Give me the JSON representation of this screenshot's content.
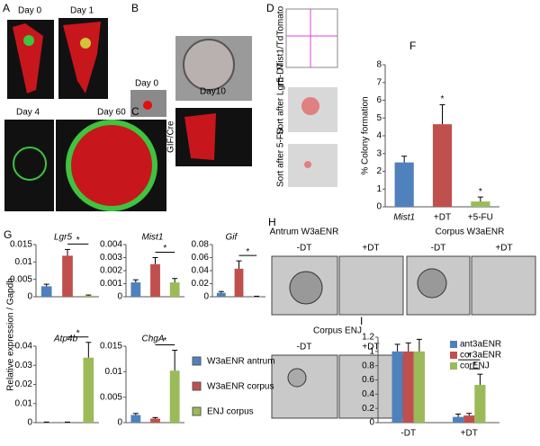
{
  "figure": {
    "panel_letters": [
      "A",
      "B",
      "C",
      "D",
      "E",
      "F",
      "G",
      "H",
      "I"
    ],
    "image_labels": [
      "Day 0",
      "Day 1",
      "Day 4",
      "Day 60",
      "Day 0",
      "Day10",
      "GIF/Cre",
      "Mist1/TdTomato",
      "Sort after Lgr5-DT",
      "Sort after 5-FU",
      "Antrum W3aENR",
      "Corpus W3aENR",
      "-DT",
      "+DT",
      "-DT",
      "+DT",
      "Corpus ENJ",
      "-DT",
      "+DT"
    ],
    "g_ylabel": "Relative expression / Gapdh",
    "g_legend": [
      {
        "name": "W3aENR antrum",
        "color": "#4f81bd"
      },
      {
        "name": "W3aENR corpus",
        "color": "#c0504d"
      },
      {
        "name": "ENJ corpus",
        "color": "#9bbb59"
      }
    ]
  },
  "chart_data": [
    {
      "type": "bar",
      "ylabel": "% Colony formation",
      "categories": [
        "Mist1",
        "+DT",
        "+5-FU"
      ],
      "values": [
        2.5,
        4.65,
        0.3
      ],
      "errors": [
        0.35,
        1.1,
        0.25
      ],
      "colors": [
        "#4f81bd",
        "#c0504d",
        "#9bbb59"
      ],
      "ylim": [
        0,
        8
      ],
      "yticks": [
        0,
        1,
        2,
        3,
        4,
        5,
        6,
        7,
        8
      ],
      "stars": [
        {
          "index": 1,
          "label": "*"
        },
        {
          "index": 2,
          "label": "*"
        }
      ]
    },
    {
      "type": "bar",
      "title": "Lgr5",
      "values": [
        0.003,
        0.0118,
        0.0003
      ],
      "errors": [
        0.0006,
        0.0018,
        0.0002
      ],
      "colors": [
        "#4f81bd",
        "#c0504d",
        "#9bbb59"
      ],
      "ylim": [
        0,
        0.015
      ],
      "yticks": [
        0,
        0.005,
        0.01,
        0.015
      ],
      "brackets": [
        {
          "from": 1,
          "to": 2,
          "label": "*"
        }
      ]
    },
    {
      "type": "bar",
      "title": "Mist1",
      "values": [
        0.0011,
        0.0025,
        0.0011
      ],
      "errors": [
        0.0002,
        0.0005,
        0.0003
      ],
      "colors": [
        "#4f81bd",
        "#c0504d",
        "#9bbb59"
      ],
      "ylim": [
        0,
        0.004
      ],
      "yticks": [
        0,
        0.001,
        0.002,
        0.003,
        0.004
      ],
      "brackets": [
        {
          "from": 1,
          "to": 2,
          "label": "*"
        }
      ]
    },
    {
      "type": "bar",
      "title": "Gif",
      "values": [
        0.006,
        0.043,
        0.0005
      ],
      "errors": [
        0.002,
        0.012,
        0.0003
      ],
      "colors": [
        "#4f81bd",
        "#c0504d",
        "#9bbb59"
      ],
      "ylim": [
        0,
        0.08
      ],
      "yticks": [
        0,
        0.02,
        0.04,
        0.06,
        0.08
      ],
      "brackets": [
        {
          "from": 1,
          "to": 2,
          "label": "*"
        }
      ]
    },
    {
      "type": "bar",
      "title": "Atp4b",
      "values": [
        0.0002,
        0.0002,
        0.034
      ],
      "errors": [
        0.0001,
        0.0001,
        0.008
      ],
      "colors": [
        "#4f81bd",
        "#c0504d",
        "#9bbb59"
      ],
      "ylim": [
        0,
        0.04
      ],
      "yticks": [
        0,
        0.01,
        0.02,
        0.03,
        0.04
      ],
      "brackets": [
        {
          "from": 1,
          "to": 2,
          "label": "*"
        }
      ]
    },
    {
      "type": "bar",
      "title": "ChgA",
      "values": [
        0.0015,
        0.0008,
        0.0102
      ],
      "errors": [
        0.0003,
        0.0002,
        0.004
      ],
      "colors": [
        "#4f81bd",
        "#c0504d",
        "#9bbb59"
      ],
      "ylim": [
        0,
        0.015
      ],
      "yticks": [
        0,
        0.005,
        0.01,
        0.015
      ],
      "brackets": [
        {
          "from": 1,
          "to": 2,
          "label": "*"
        }
      ]
    },
    {
      "type": "bar",
      "categories": [
        "-DT",
        "+DT"
      ],
      "series": [
        {
          "name": "ant3aENR",
          "color": "#4f81bd",
          "values": [
            1,
            0.08
          ],
          "errors": [
            0.1,
            0.04
          ]
        },
        {
          "name": "cor3aENR",
          "color": "#c0504d",
          "values": [
            1,
            0.1
          ],
          "errors": [
            0.12,
            0.03
          ]
        },
        {
          "name": "corENJ",
          "color": "#9bbb59",
          "values": [
            1,
            0.53
          ],
          "errors": [
            0.17,
            0.15
          ]
        }
      ],
      "ylim": [
        0,
        1.2
      ],
      "yticks": [
        0,
        0.2,
        0.4,
        0.6,
        0.8,
        1,
        1.2
      ],
      "brackets": [
        {
          "category": 1,
          "from": 1,
          "to": 2,
          "label": "*"
        },
        {
          "category": 1,
          "from": 0,
          "to": 2,
          "label": "*"
        }
      ]
    }
  ]
}
